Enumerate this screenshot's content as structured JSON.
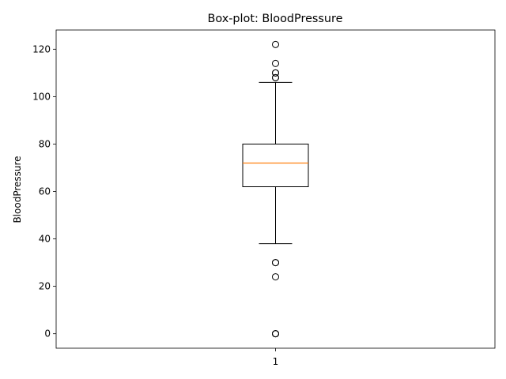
{
  "chart_data": {
    "type": "box",
    "title": "Box-plot: BloodPressure",
    "xlabel": "",
    "ylabel": "BloodPressure",
    "categories": [
      "1"
    ],
    "ylim": [
      -6.1,
      128.1
    ],
    "yticks": [
      0,
      20,
      40,
      60,
      80,
      100,
      120
    ],
    "grid": false,
    "legend": "none",
    "box": {
      "whisker_low": 38,
      "q1": 62,
      "median": 72,
      "q3": 80,
      "whisker_high": 106
    },
    "outliers": [
      0,
      0,
      0,
      24,
      30,
      30,
      108,
      108,
      110,
      110,
      114,
      122
    ],
    "colors": {
      "box": "#000000",
      "median": "#ff7f0e",
      "outlier": "#000000"
    }
  }
}
